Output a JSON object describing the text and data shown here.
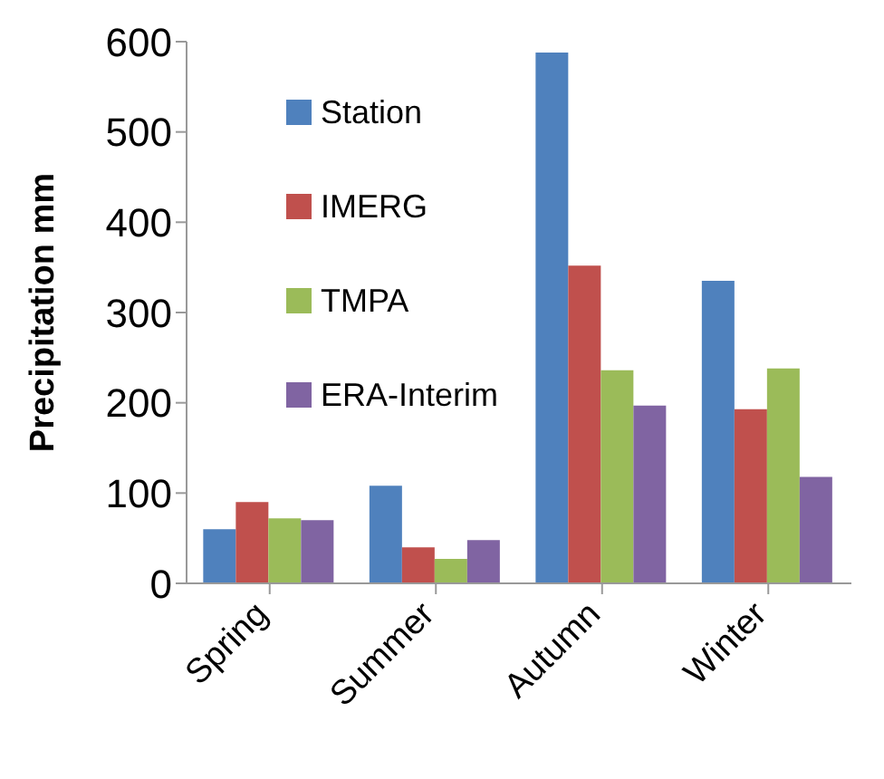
{
  "chart_data": {
    "type": "bar",
    "ylabel": "Precipitation mm",
    "categories": [
      "Spring",
      "Summer",
      "Autumn",
      "Winter"
    ],
    "series": [
      {
        "name": "Station",
        "color": "#4f81bd",
        "values": [
          60,
          108,
          588,
          335
        ]
      },
      {
        "name": "IMERG",
        "color": "#c0504d",
        "values": [
          90,
          40,
          352,
          193
        ]
      },
      {
        "name": "TMPA",
        "color": "#9bbb59",
        "values": [
          72,
          27,
          236,
          238
        ]
      },
      {
        "name": "ERA-Interim",
        "color": "#8064a2",
        "values": [
          70,
          48,
          197,
          118
        ]
      }
    ],
    "ylim": [
      0,
      600
    ],
    "yticks": [
      0,
      100,
      200,
      300,
      400,
      500,
      600
    ],
    "grid": false,
    "legend": "top left"
  }
}
